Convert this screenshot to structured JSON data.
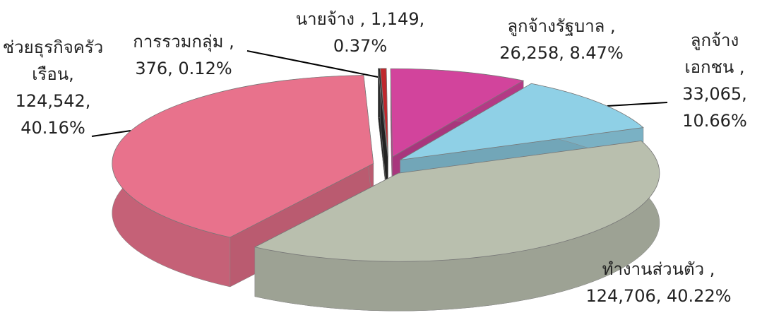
{
  "chart_data": {
    "type": "pie",
    "categories": [
      "นายจ้าง ,",
      "ลูกจ้างรัฐบาล ,",
      "ลูกจ้าง เอกชน ,",
      "ทำงานส่วนตัว ,",
      "ช่วยธุรกิจครัวเรือน,",
      "การรวมกลุ่ม ,"
    ],
    "values": [
      1149,
      26258,
      33065,
      124706,
      124542,
      376
    ],
    "value_labels": [
      "1,149,",
      "26,258,",
      "33,065,",
      "124,706,",
      "124,542,",
      "376,"
    ],
    "percents": [
      0.37,
      8.47,
      10.66,
      40.22,
      40.16,
      0.12
    ],
    "percent_labels": [
      "0.37%",
      "8.47%",
      "10.66%",
      "40.22%",
      "40.16%",
      "0.12%"
    ],
    "colors": [
      "#c0282d",
      "#d2449c",
      "#8fd0e6",
      "#b9bfae",
      "#e8728c",
      "#2c2c2c"
    ]
  }
}
